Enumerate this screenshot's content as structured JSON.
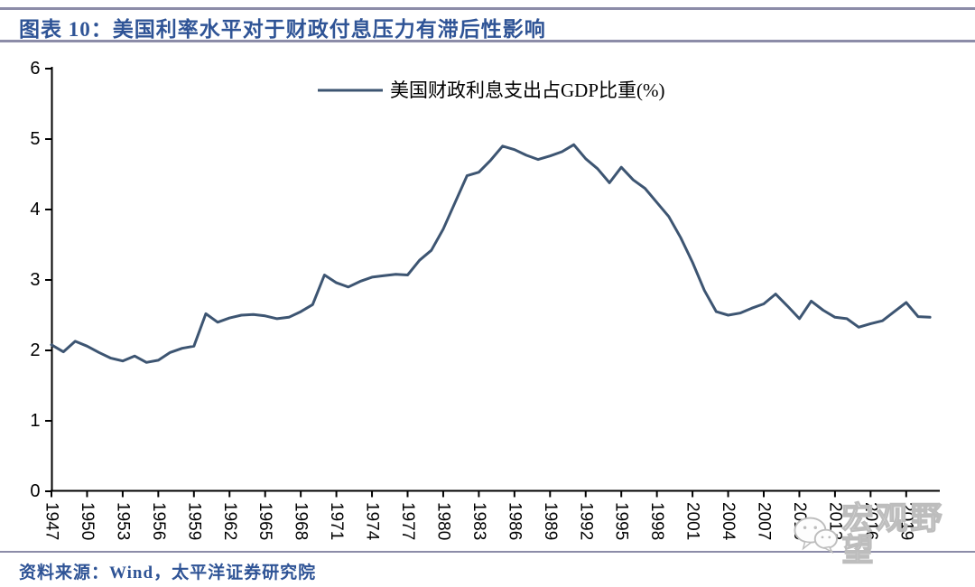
{
  "header": {
    "title": "图表 10：美国利率水平对于财政付息压力有滞后性影响"
  },
  "footer": {
    "source": "资料来源：Wind，太平洋证券研究院"
  },
  "watermark": {
    "label": "宏观野望",
    "icon": "wechat-icon"
  },
  "colors": {
    "line": "#3d5572",
    "title_blue": "#2f5496",
    "rule": "#8c8ca8",
    "axis": "#000000",
    "tick_label": "#000000",
    "watermark_gray": "#bdbdbd"
  },
  "chart_data": {
    "type": "line",
    "title": "",
    "xlabel": "",
    "ylabel": "",
    "ylim": [
      0,
      6
    ],
    "ytick_step": 1,
    "ytick_labels": [
      "0",
      "1",
      "2",
      "3",
      "4",
      "5",
      "6"
    ],
    "grid": false,
    "legend_position": "top-center",
    "xtick_labels": [
      1947,
      1950,
      1953,
      1956,
      1959,
      1962,
      1965,
      1968,
      1971,
      1974,
      1977,
      1980,
      1983,
      1986,
      1989,
      1992,
      1995,
      1998,
      2001,
      2004,
      2007,
      2010,
      2013,
      2016,
      2019
    ],
    "x": [
      1947,
      1948,
      1949,
      1950,
      1951,
      1952,
      1953,
      1954,
      1955,
      1956,
      1957,
      1958,
      1959,
      1960,
      1961,
      1962,
      1963,
      1964,
      1965,
      1966,
      1967,
      1968,
      1969,
      1970,
      1971,
      1972,
      1973,
      1974,
      1975,
      1976,
      1977,
      1978,
      1979,
      1980,
      1981,
      1982,
      1983,
      1984,
      1985,
      1986,
      1987,
      1988,
      1989,
      1990,
      1991,
      1992,
      1993,
      1994,
      1995,
      1996,
      1997,
      1998,
      1999,
      2000,
      2001,
      2002,
      2003,
      2004,
      2005,
      2006,
      2007,
      2008,
      2009,
      2010,
      2011,
      2012,
      2013,
      2014,
      2015,
      2016,
      2017,
      2018,
      2019,
      2020,
      2021
    ],
    "series": [
      {
        "name": "美国财政利息支出占GDP比重(%)",
        "color": "#3d5572",
        "values": [
          2.08,
          1.98,
          2.13,
          2.06,
          1.97,
          1.89,
          1.85,
          1.92,
          1.83,
          1.86,
          1.97,
          2.03,
          2.06,
          2.52,
          2.4,
          2.46,
          2.5,
          2.51,
          2.49,
          2.45,
          2.47,
          2.55,
          2.65,
          3.07,
          2.96,
          2.9,
          2.98,
          3.04,
          3.06,
          3.08,
          3.07,
          3.28,
          3.42,
          3.72,
          4.1,
          4.48,
          4.53,
          4.7,
          4.9,
          4.85,
          4.77,
          4.71,
          4.76,
          4.82,
          4.92,
          4.72,
          4.58,
          4.38,
          4.6,
          4.42,
          4.3,
          4.1,
          3.9,
          3.6,
          3.25,
          2.85,
          2.55,
          2.5,
          2.53,
          2.6,
          2.66,
          2.8,
          2.63,
          2.45,
          2.7,
          2.57,
          2.47,
          2.45,
          2.33,
          2.38,
          2.42,
          2.55,
          2.68,
          2.48,
          2.47
        ]
      }
    ]
  }
}
